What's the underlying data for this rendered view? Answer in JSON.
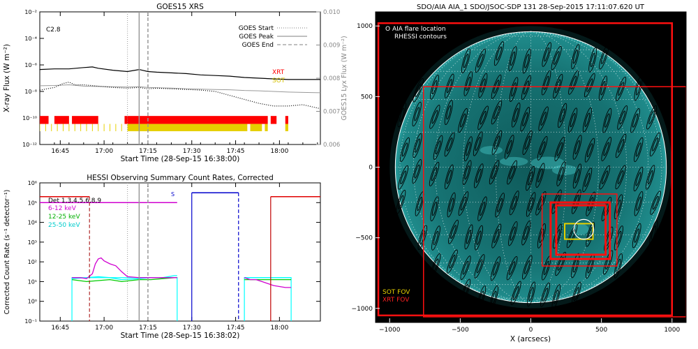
{
  "colors": {
    "xrt": "#ff0000",
    "sot": "#e6d000",
    "hessi_att": "#d000d0",
    "hessi_12": "#00cc00",
    "hessi_25": "#00ffff",
    "hessi_blue": "#0000cc",
    "goes_long": "#000000",
    "goes_lya": "#999999",
    "sun_body": "#1a7a7a",
    "map_bg": "#000000"
  },
  "chart_data": [
    {
      "type": "line",
      "title": "GOES15 XRS",
      "xlabel": "Start Time (28-Sep-15 16:38:00)",
      "ylabel": "X-ray Flux (W m⁻²)",
      "ylabel_right": "GOES15 Lyx Flux (W m⁻²)",
      "x_ticks": [
        "16:45",
        "17:00",
        "17:15",
        "17:30",
        "17:45",
        "18:00"
      ],
      "x_tick_minutes": [
        7,
        22,
        37,
        52,
        67,
        82
      ],
      "xlim_minutes": [
        0,
        96
      ],
      "y_log": true,
      "ylim_exp": [
        -12,
        -2
      ],
      "y_ticks": [
        "10⁻¹²",
        "10⁻¹⁰",
        "10⁻⁸",
        "10⁻⁶",
        "10⁻⁴",
        "10⁻²"
      ],
      "y_tick_exp": [
        -12,
        -10,
        -8,
        -6,
        -4,
        -2
      ],
      "y2_ticks": [
        "0.006",
        "0.007",
        "0.008",
        "0.009",
        "0.010"
      ],
      "y2_tick_values": [
        0.006,
        0.007,
        0.008,
        0.009,
        0.01
      ],
      "y2lim": [
        0.006,
        0.01
      ],
      "flare_class": "C2.8",
      "legend": {
        "entries": [
          "GOES Start",
          "GOES Peak",
          "GOES End"
        ],
        "styles": [
          "dotted",
          "solid",
          "dashed"
        ],
        "placement": "top-right"
      },
      "event_markers_minutes": {
        "start": 30,
        "peak": 34,
        "end": 37
      },
      "series": [
        {
          "name": "",
          "style": "long",
          "x": [
            0,
            5,
            10,
            15,
            18,
            20,
            25,
            30,
            34,
            37,
            40,
            45,
            50,
            55,
            60,
            65,
            70,
            75,
            80,
            85,
            90,
            96
          ],
          "y_exp": [
            -6.35,
            -6.3,
            -6.3,
            -6.2,
            -6.15,
            -6.25,
            -6.4,
            -6.5,
            -6.35,
            -6.5,
            -6.55,
            -6.6,
            -6.65,
            -6.75,
            -6.8,
            -6.85,
            -6.95,
            -7.0,
            -7.05,
            -7.1,
            -7.1,
            -7.1
          ]
        },
        {
          "name": "",
          "style": "short",
          "x": [
            0,
            5,
            8,
            10,
            12,
            15,
            20,
            25,
            30,
            34,
            37,
            40,
            45,
            50,
            55,
            60,
            65,
            70,
            75,
            80,
            85,
            90,
            96
          ],
          "y_exp": [
            -7.9,
            -7.7,
            -7.4,
            -7.3,
            -7.5,
            -7.5,
            -7.6,
            -7.7,
            -7.75,
            -7.7,
            -7.8,
            -7.75,
            -7.8,
            -7.85,
            -7.9,
            -8.0,
            -8.3,
            -8.6,
            -8.9,
            -9.1,
            -9.1,
            -9.0,
            -9.3
          ]
        },
        {
          "name": "",
          "style": "lya",
          "x": [
            0,
            5,
            10,
            15,
            20,
            25,
            30,
            34,
            37,
            40,
            45,
            50,
            55,
            60,
            65,
            70,
            75,
            80,
            85,
            90,
            96
          ],
          "y": [
            0.00777,
            0.00778,
            0.0078,
            0.00776,
            0.00775,
            0.00774,
            0.00773,
            0.00774,
            0.00772,
            0.00771,
            0.0077,
            0.00768,
            0.00767,
            0.00766,
            0.00765,
            0.00763,
            0.00762,
            0.0076,
            0.00758,
            0.00757,
            0.00756
          ]
        }
      ],
      "coverage_legend": [
        "XRT",
        "SOT"
      ],
      "xrt_coverage_minutes": [
        [
          0,
          3
        ],
        [
          5,
          10
        ],
        [
          11,
          20
        ],
        [
          29,
          78
        ],
        [
          79,
          81
        ],
        [
          84,
          85
        ]
      ],
      "sot_coverage_minutes": [
        [
          30,
          71
        ],
        [
          72,
          76
        ],
        [
          77,
          78
        ],
        [
          84,
          85
        ]
      ],
      "sot_ticks_minutes": [
        0,
        2,
        4,
        6,
        8,
        10,
        12,
        14,
        16,
        18,
        20,
        22,
        24,
        26,
        28
      ]
    },
    {
      "type": "line",
      "title": "HESSI Observing Summary Count Rates, Corrected",
      "xlabel": "Start Time (28-Sep-15 16:38:02)",
      "ylabel": "Corrected Count Rate (s⁻¹ detector⁻¹)",
      "x_ticks": [
        "16:45",
        "17:00",
        "17:15",
        "17:30",
        "17:45",
        "18:00"
      ],
      "x_tick_minutes": [
        7,
        22,
        37,
        52,
        67,
        82
      ],
      "xlim_minutes": [
        0,
        96
      ],
      "y_log": true,
      "ylim_exp": [
        -1,
        6
      ],
      "y_ticks": [
        "10⁻¹",
        "10⁰",
        "10¹",
        "10²",
        "10³",
        "10⁴",
        "10⁵",
        "10⁶"
      ],
      "y_tick_exp": [
        -1,
        0,
        1,
        2,
        3,
        4,
        5,
        6
      ],
      "legend_title": "Det 1,3,4,5,6,8,9",
      "legend": {
        "entries": [
          "6-12 keV",
          "12-25 keV",
          "25-50 keV"
        ],
        "placement": "top-left"
      },
      "annotation": "S",
      "lines": {
        "hessi_att_level_exp": 5.0,
        "red_level_exp": 5.3,
        "blue_level_exp": 5.5
      },
      "vertical_markers_minutes": {
        "red_dashed": 17,
        "dotted": 30,
        "solid": 34,
        "dashed": 37,
        "blue_solid": 52,
        "blue_dashed": 68,
        "red_solid": 79
      },
      "series": [
        {
          "name": "6-12 keV",
          "x": [
            11,
            14,
            16,
            18,
            19,
            20,
            21,
            22,
            24,
            26,
            28,
            30,
            34,
            38,
            42,
            46,
            47,
            70,
            72,
            74,
            76,
            80,
            84,
            86
          ],
          "y_exp": [
            1.2,
            1.2,
            1.15,
            1.4,
            1.9,
            2.15,
            2.2,
            2.05,
            1.9,
            1.8,
            1.5,
            1.25,
            1.2,
            1.2,
            1.2,
            1.2,
            1.2,
            1.2,
            1.1,
            1.1,
            1.0,
            0.8,
            0.7,
            0.7
          ]
        },
        {
          "name": "12-25 keV",
          "x": [
            11,
            16,
            20,
            24,
            28,
            34,
            38,
            42,
            46,
            47,
            70,
            74,
            80,
            86
          ],
          "y_exp": [
            1.1,
            1.0,
            1.05,
            1.1,
            1.0,
            1.1,
            1.1,
            1.15,
            1.2,
            1.2,
            1.1,
            1.1,
            1.1,
            1.1
          ]
        },
        {
          "name": "25-50 keV",
          "x": [
            11,
            16,
            20,
            24,
            28,
            34,
            38,
            42,
            46,
            47,
            70,
            74,
            80,
            86
          ],
          "y_exp": [
            1.15,
            1.2,
            1.25,
            1.2,
            1.1,
            1.15,
            1.2,
            1.2,
            1.3,
            1.3,
            1.2,
            1.2,
            1.2,
            1.2
          ]
        }
      ]
    },
    {
      "type": "scatter",
      "title": "SDO/AIA AIA_1 SDO/JSOC-SDP 131 28-Sep-2015 17:11:07.620 UT",
      "xlabel": "X (arcsecs)",
      "ylabel": "",
      "x_ticks": [
        "−1000",
        "−500",
        "0",
        "500",
        "1000"
      ],
      "x_tick_values": [
        -1000,
        -500,
        0,
        500,
        1000
      ],
      "y_ticks": [
        "−1000",
        "−500",
        "0",
        "500",
        "1000"
      ],
      "y_tick_values": [
        -1000,
        -500,
        0,
        500,
        1000
      ],
      "xlim": [
        -1100,
        1100
      ],
      "ylim": [
        -1100,
        1100
      ],
      "legend_top": {
        "symbol": "O",
        "entries": [
          "AIA flare location",
          "RHESSI contours"
        ],
        "placement": "top-left"
      },
      "legend_bottom": {
        "entries": [
          "SOT FOV",
          "XRT FOV"
        ],
        "placement": "bottom-left"
      },
      "solar_radius_arcsec": 960,
      "flare_location": {
        "x": 375,
        "y": -440,
        "r": 70
      },
      "rect_sot": {
        "x0": 240,
        "y0": -510,
        "x1": 440,
        "y1": -400
      },
      "rect_xrt_inner": [
        {
          "x0": 140,
          "y0": -650,
          "x1": 560,
          "y1": -250
        },
        {
          "x0": 180,
          "y0": -620,
          "x1": 530,
          "y1": -270
        }
      ],
      "rect_outer_small": {
        "x0": 80,
        "y0": -700,
        "x1": 610,
        "y1": -190
      },
      "rect_xrt_big1": {
        "x0": -1080,
        "y0": -1050,
        "x1": 1000,
        "y1": 1020
      },
      "rect_xrt_big2": {
        "x0": -760,
        "y0": -1060,
        "x1": 1100,
        "y1": 570
      }
    }
  ]
}
